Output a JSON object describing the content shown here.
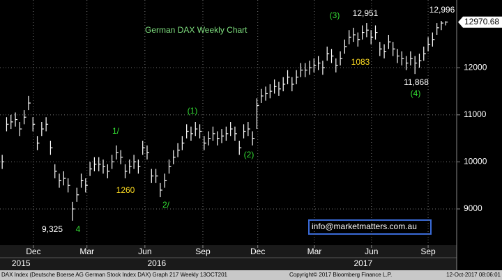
{
  "chart_data": {
    "type": "ohlc",
    "title": "German DAX Weekly Chart",
    "color": "#ffffff",
    "close": [
      10000,
      10800,
      10850,
      10900,
      10700,
      10950,
      11250,
      10800,
      10400,
      10700,
      10800,
      10300,
      9800,
      9600,
      9650,
      9500,
      9000,
      9300,
      9600,
      9500,
      9850,
      9950,
      9950,
      9900,
      9800,
      10000,
      10200,
      10100,
      9800,
      9900,
      10000,
      9900,
      10300,
      10200,
      9700,
      9700,
      9400,
      9600,
      9900,
      10100,
      10250,
      10400,
      10650,
      10600,
      10700,
      10650,
      10400,
      10500,
      10600,
      10500,
      10550,
      10600,
      10700,
      10600,
      10300,
      10650,
      10700,
      10500,
      11200,
      11400,
      11450,
      11500,
      11600,
      11550,
      11650,
      11800,
      11650,
      11800,
      11950,
      11950,
      12000,
      12050,
      12100,
      12000,
      12300,
      12250,
      12050,
      12200,
      12450,
      12650,
      12700,
      12600,
      12750,
      12800,
      12650,
      12750,
      12400,
      12350,
      12550,
      12400,
      12250,
      12200,
      12100,
      12200,
      12100,
      12150,
      12300,
      12500,
      12600,
      12850,
      12950,
      12970
    ],
    "high": [
      10150,
      10950,
      11000,
      11050,
      10850,
      11100,
      11400,
      10950,
      10550,
      10850,
      10950,
      10450,
      9950,
      9750,
      9800,
      9650,
      9150,
      9450,
      9750,
      9650,
      10000,
      10100,
      10100,
      10050,
      9950,
      10150,
      10350,
      10250,
      9950,
      10050,
      10150,
      10050,
      10450,
      10350,
      9850,
      9850,
      9550,
      9750,
      10050,
      10250,
      10400,
      10550,
      10800,
      10750,
      10850,
      10800,
      10550,
      10650,
      10750,
      10650,
      10700,
      10750,
      10850,
      10750,
      10450,
      10800,
      10850,
      10650,
      11350,
      11550,
      11600,
      11650,
      11750,
      11700,
      11800,
      11950,
      11800,
      11950,
      12100,
      12100,
      12150,
      12200,
      12250,
      12150,
      12450,
      12400,
      12200,
      12350,
      12600,
      12800,
      12850,
      12750,
      12900,
      12951,
      12800,
      12900,
      12550,
      12500,
      12700,
      12550,
      12400,
      12350,
      12250,
      12350,
      12250,
      12300,
      12450,
      12650,
      12750,
      12950,
      12996,
      12990
    ],
    "low": [
      9850,
      10650,
      10700,
      10750,
      10550,
      10800,
      11100,
      10650,
      10250,
      10550,
      10650,
      10150,
      9650,
      9450,
      9500,
      9350,
      8750,
      9150,
      9450,
      9350,
      9700,
      9800,
      9800,
      9750,
      9650,
      9850,
      10050,
      9950,
      9650,
      9750,
      9850,
      9750,
      10150,
      10050,
      9550,
      9550,
      9250,
      9450,
      9750,
      9950,
      10100,
      10250,
      10500,
      10450,
      10550,
      10500,
      10250,
      10350,
      10450,
      10350,
      10400,
      10450,
      10550,
      10450,
      10150,
      10500,
      10550,
      10350,
      10700,
      11250,
      11300,
      11350,
      11450,
      11400,
      11500,
      11650,
      11500,
      11650,
      11800,
      11800,
      11850,
      11900,
      11950,
      11850,
      12150,
      12100,
      11900,
      12050,
      12300,
      12500,
      12550,
      12450,
      12600,
      12650,
      12500,
      12600,
      12250,
      12200,
      12400,
      12250,
      12100,
      12050,
      11950,
      12050,
      11868,
      12000,
      12150,
      12350,
      12450,
      12700,
      12800,
      12900
    ],
    "ylim": [
      8230,
      13440
    ],
    "yticks": [
      9000,
      10000,
      11000,
      12000
    ],
    "xlim": [
      -0.5,
      103.5
    ],
    "xticks": [
      {
        "value": 7.1,
        "label": "Dec"
      },
      {
        "value": 19.3,
        "label": "Mar"
      },
      {
        "value": 32.5,
        "label": "Jun"
      },
      {
        "value": 45.7,
        "label": "Sep"
      },
      {
        "value": 58.2,
        "label": "Dec"
      },
      {
        "value": 71.1,
        "label": "Mar"
      },
      {
        "value": 84.1,
        "label": "Jun"
      },
      {
        "value": 97,
        "label": "Sep"
      }
    ],
    "years": [
      {
        "value": 4.3,
        "label": "2015"
      },
      {
        "value": 35.2,
        "label": "2016"
      },
      {
        "value": 82.2,
        "label": "2017"
      }
    ],
    "grid": true,
    "last_price": 12970.68,
    "annotations": [
      {
        "text": "German DAX Weekly Chart",
        "color": "#7fe07f"
      },
      {
        "text": "(3)",
        "color": "#33dd33"
      },
      {
        "text": "12,951",
        "color": "#ffffff"
      },
      {
        "text": "12,996",
        "color": "#ffffff"
      },
      {
        "text": "1083",
        "color": "#ffdd22"
      },
      {
        "text": "11,868",
        "color": "#ffffff"
      },
      {
        "text": "(4)",
        "color": "#33dd33"
      },
      {
        "text": "(1)",
        "color": "#33dd33"
      },
      {
        "text": "(2)",
        "color": "#33dd33"
      },
      {
        "text": "1/",
        "color": "#33dd33"
      },
      {
        "text": "1260",
        "color": "#ffdd22"
      },
      {
        "text": "2/",
        "color": "#33dd33"
      },
      {
        "text": "9,325",
        "color": "#ffffff"
      },
      {
        "text": "4",
        "color": "#33dd33"
      },
      {
        "text": "info@marketmatters.com.au",
        "color": "#ffffff"
      }
    ],
    "footer": [
      "DAX Index (Deutsche Boerse AG German Stock Index DAX) Graph 217  Weekly 13OCT201",
      "Copyright© 2017 Bloomberg Finance L.P.",
      "12-Oct-2017 08:06:01"
    ]
  }
}
